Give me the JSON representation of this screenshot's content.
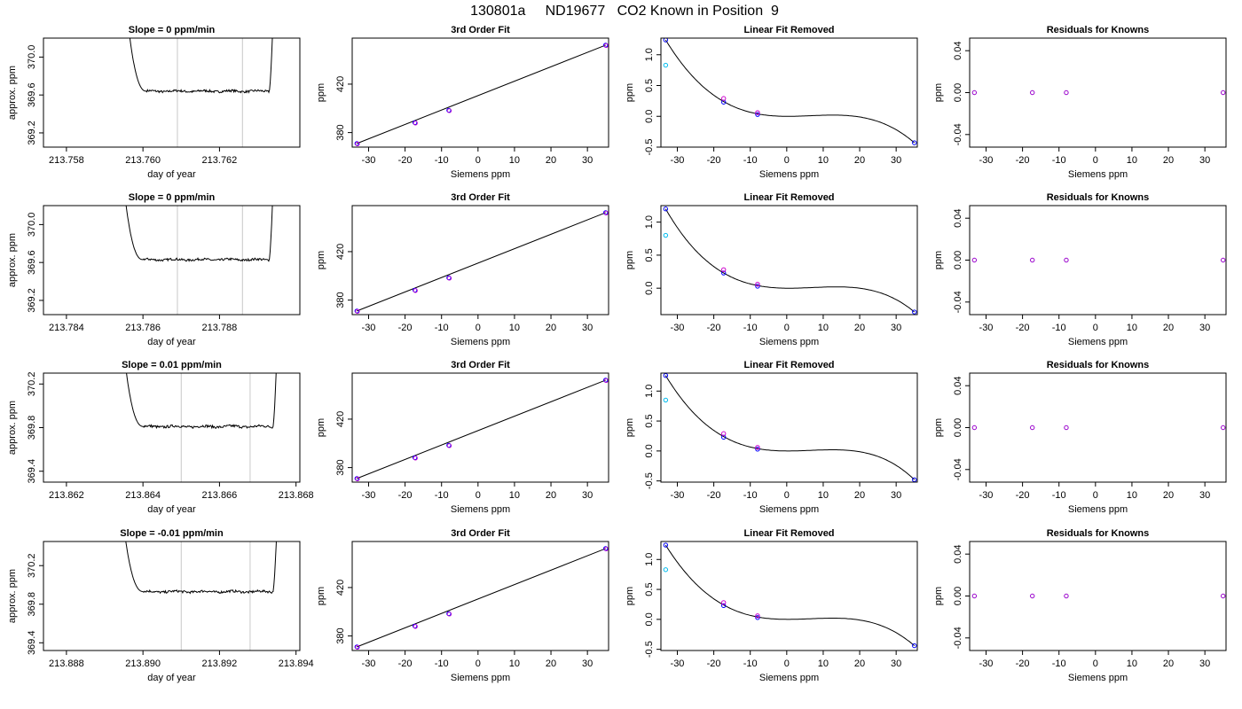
{
  "page": {
    "title": "130801a     ND19677   CO2 Known in Position  9"
  },
  "chart_data": [
    {
      "type": "line",
      "row": 0,
      "panel": "timeseries",
      "title": "Slope =  0  ppm/min",
      "xlabel": "day of year",
      "ylabel": "approx. ppm",
      "xlim": [
        213.7574,
        213.7641
      ],
      "ylim": [
        369.05,
        370.2
      ],
      "xticks": [
        213.758,
        213.76,
        213.762
      ],
      "xtick_labels": [
        "213.758",
        "213.760",
        "213.762"
      ],
      "yticks": [
        369.2,
        369.6,
        370.0
      ],
      "ytick_labels": [
        "369.2",
        "369.6",
        "370.0"
      ],
      "vlines": [
        213.7609,
        213.7626
      ],
      "curve": {
        "start": 213.7593,
        "rise": 213.7596,
        "fall_end": 213.7633,
        "end": 213.7634,
        "level": 369.64,
        "noise": 0.012,
        "top": 370.4
      }
    },
    {
      "type": "line",
      "row": 1,
      "panel": "timeseries",
      "title": "Slope =  0  ppm/min",
      "xlabel": "day of year",
      "ylabel": "approx. ppm",
      "xlim": [
        213.7834,
        213.7901
      ],
      "ylim": [
        369.05,
        370.2
      ],
      "xticks": [
        213.784,
        213.786,
        213.788
      ],
      "xtick_labels": [
        "213.784",
        "213.786",
        "213.788"
      ],
      "yticks": [
        369.2,
        369.6,
        370.0
      ],
      "ytick_labels": [
        "369.2",
        "369.6",
        "370.0"
      ],
      "vlines": [
        213.7869,
        213.7886
      ],
      "curve": {
        "start": 213.7852,
        "rise": 213.7855,
        "fall_end": 213.7893,
        "end": 213.7894,
        "level": 369.63,
        "noise": 0.012,
        "top": 370.4
      }
    },
    {
      "type": "line",
      "row": 2,
      "panel": "timeseries",
      "title": "Slope =  0.01  ppm/min",
      "xlabel": "day of year",
      "ylabel": "approx. ppm",
      "xlim": [
        213.8614,
        213.8681
      ],
      "ylim": [
        369.3,
        370.3
      ],
      "xticks": [
        213.862,
        213.864,
        213.866,
        213.868
      ],
      "xtick_labels": [
        "213.862",
        "213.864",
        "213.866",
        "213.868"
      ],
      "yticks": [
        369.4,
        369.8,
        370.2
      ],
      "ytick_labels": [
        "369.4",
        "369.8",
        "370.2"
      ],
      "vlines": [
        213.865,
        213.8668
      ],
      "curve": {
        "start": 213.8632,
        "rise": 213.8635,
        "fall_end": 213.8674,
        "end": 213.8675,
        "level": 369.81,
        "noise": 0.012,
        "top": 370.5
      }
    },
    {
      "type": "line",
      "row": 3,
      "panel": "timeseries",
      "title": "Slope =  -0.01  ppm/min",
      "xlabel": "day of year",
      "ylabel": "approx. ppm",
      "xlim": [
        213.8874,
        213.8941
      ],
      "ylim": [
        369.32,
        370.45
      ],
      "xticks": [
        213.888,
        213.89,
        213.892,
        213.894
      ],
      "xtick_labels": [
        "213.888",
        "213.890",
        "213.892",
        "213.894"
      ],
      "yticks": [
        369.4,
        369.8,
        370.2
      ],
      "ytick_labels": [
        "369.4",
        "369.8",
        "370.2"
      ],
      "vlines": [
        213.891,
        213.8928
      ],
      "curve": {
        "start": 213.8892,
        "rise": 213.8895,
        "fall_end": 213.8934,
        "end": 213.8935,
        "level": 369.93,
        "noise": 0.012,
        "top": 370.6
      }
    },
    {
      "type": "scatter",
      "row": 0,
      "panel": "fit",
      "title": "3rd Order Fit",
      "xlabel": "Siemens ppm",
      "ylabel": "ppm",
      "xlim": [
        -34.5,
        35.8
      ],
      "ylim": [
        368,
        458
      ],
      "xticks": [
        -30,
        -20,
        -10,
        0,
        10,
        20,
        30
      ],
      "xtick_labels": [
        "-30",
        "-20",
        "-10",
        "0",
        "10",
        "20",
        "30"
      ],
      "yticks": [
        380,
        420
      ],
      "ytick_labels": [
        "380",
        "420"
      ],
      "points": [
        [
          -33.2,
          371.0
        ],
        [
          -17.3,
          388.2
        ],
        [
          -8.0,
          398.4
        ],
        [
          35.0,
          452.2
        ]
      ],
      "line": [
        [
          -33.2,
          371.0
        ],
        [
          35.0,
          452.2
        ]
      ]
    },
    {
      "type": "scatter",
      "row": 1,
      "panel": "fit",
      "title": "3rd Order Fit",
      "xlabel": "Siemens ppm",
      "ylabel": "ppm",
      "xlim": [
        -34.5,
        35.8
      ],
      "ylim": [
        368,
        458
      ],
      "xticks": [
        -30,
        -20,
        -10,
        0,
        10,
        20,
        30
      ],
      "xtick_labels": [
        "-30",
        "-20",
        "-10",
        "0",
        "10",
        "20",
        "30"
      ],
      "yticks": [
        380,
        420
      ],
      "ytick_labels": [
        "380",
        "420"
      ],
      "points": [
        [
          -33.2,
          371.0
        ],
        [
          -17.3,
          388.2
        ],
        [
          -8.0,
          398.4
        ],
        [
          35.0,
          452.2
        ]
      ],
      "line": [
        [
          -33.2,
          371.0
        ],
        [
          35.0,
          452.2
        ]
      ]
    },
    {
      "type": "scatter",
      "row": 2,
      "panel": "fit",
      "title": "3rd Order Fit",
      "xlabel": "Siemens ppm",
      "ylabel": "ppm",
      "xlim": [
        -34.5,
        35.8
      ],
      "ylim": [
        368,
        458
      ],
      "xticks": [
        -30,
        -20,
        -10,
        0,
        10,
        20,
        30
      ],
      "xtick_labels": [
        "-30",
        "-20",
        "-10",
        "0",
        "10",
        "20",
        "30"
      ],
      "yticks": [
        380,
        420
      ],
      "ytick_labels": [
        "380",
        "420"
      ],
      "points": [
        [
          -33.2,
          371.0
        ],
        [
          -17.3,
          388.2
        ],
        [
          -8.0,
          398.4
        ],
        [
          35.0,
          452.2
        ]
      ],
      "line": [
        [
          -33.2,
          371.0
        ],
        [
          35.0,
          452.2
        ]
      ]
    },
    {
      "type": "scatter",
      "row": 3,
      "panel": "fit",
      "title": "3rd Order Fit",
      "xlabel": "Siemens ppm",
      "ylabel": "ppm",
      "xlim": [
        -34.5,
        35.8
      ],
      "ylim": [
        368,
        458
      ],
      "xticks": [
        -30,
        -20,
        -10,
        0,
        10,
        20,
        30
      ],
      "xtick_labels": [
        "-30",
        "-20",
        "-10",
        "0",
        "10",
        "20",
        "30"
      ],
      "yticks": [
        380,
        420
      ],
      "ytick_labels": [
        "380",
        "420"
      ],
      "points": [
        [
          -33.2,
          371.0
        ],
        [
          -17.3,
          388.2
        ],
        [
          -8.0,
          398.4
        ],
        [
          35.0,
          452.2
        ]
      ],
      "line": [
        [
          -33.2,
          371.0
        ],
        [
          35.0,
          452.2
        ]
      ]
    },
    {
      "type": "scatter",
      "row": 0,
      "panel": "linear-removed",
      "title": "Linear Fit Removed",
      "xlabel": "Siemens ppm",
      "ylabel": "ppm",
      "xlim": [
        -34.5,
        35.8
      ],
      "ylim": [
        -0.5,
        1.27
      ],
      "xticks": [
        -30,
        -20,
        -10,
        0,
        10,
        20,
        30
      ],
      "xtick_labels": [
        "-30",
        "-20",
        "-10",
        "0",
        "10",
        "20",
        "30"
      ],
      "yticks": [
        -0.5,
        0.0,
        0.5,
        1.0
      ],
      "ytick_labels": [
        "-0.5",
        "0.0",
        "0.5",
        "1.0"
      ],
      "cubic": {
        "x_from": -33.2,
        "x_to": 35.0,
        "knots": [
          [
            -33.2,
            1.24
          ],
          [
            -17.3,
            0.24
          ],
          [
            -8.0,
            0.04
          ],
          [
            0,
            0.0
          ],
          [
            13,
            0.02
          ],
          [
            35.0,
            -0.43
          ]
        ]
      },
      "series": [
        {
          "name": "blue",
          "color": "#0000ff",
          "points": [
            [
              -33.2,
              1.24
            ],
            [
              -17.3,
              0.23
            ],
            [
              -8.0,
              0.03
            ],
            [
              35.0,
              -0.43
            ]
          ]
        },
        {
          "name": "magenta",
          "color": "#cc00cc",
          "points": [
            [
              -17.3,
              0.29
            ],
            [
              -8.0,
              0.06
            ]
          ]
        },
        {
          "name": "cyan",
          "color": "#00bbee",
          "points": [
            [
              -33.2,
              0.83
            ]
          ]
        }
      ]
    },
    {
      "type": "scatter",
      "row": 1,
      "panel": "linear-removed",
      "title": "Linear Fit Removed",
      "xlabel": "Siemens ppm",
      "ylabel": "ppm",
      "xlim": [
        -34.5,
        35.8
      ],
      "ylim": [
        -0.4,
        1.25
      ],
      "xticks": [
        -30,
        -20,
        -10,
        0,
        10,
        20,
        30
      ],
      "xtick_labels": [
        "-30",
        "-20",
        "-10",
        "0",
        "10",
        "20",
        "30"
      ],
      "yticks": [
        0.0,
        0.5,
        1.0
      ],
      "ytick_labels": [
        "0.0",
        "0.5",
        "1.0"
      ],
      "cubic": {
        "x_from": -33.2,
        "x_to": 35.0,
        "knots": [
          [
            -33.2,
            1.2
          ],
          [
            -17.3,
            0.23
          ],
          [
            -8.0,
            0.04
          ],
          [
            0,
            0.0
          ],
          [
            13,
            0.02
          ],
          [
            35.0,
            -0.36
          ]
        ]
      },
      "series": [
        {
          "name": "blue",
          "color": "#0000ff",
          "points": [
            [
              -33.2,
              1.2
            ],
            [
              -17.3,
              0.23
            ],
            [
              -8.0,
              0.03
            ],
            [
              35.0,
              -0.36
            ]
          ]
        },
        {
          "name": "magenta",
          "color": "#cc00cc",
          "points": [
            [
              -17.3,
              0.28
            ],
            [
              -8.0,
              0.06
            ]
          ]
        },
        {
          "name": "cyan",
          "color": "#00bbee",
          "points": [
            [
              -33.2,
              0.8
            ]
          ]
        }
      ]
    },
    {
      "type": "scatter",
      "row": 2,
      "panel": "linear-removed",
      "title": "Linear Fit Removed",
      "xlabel": "Siemens ppm",
      "ylabel": "ppm",
      "xlim": [
        -34.5,
        35.8
      ],
      "ylim": [
        -0.52,
        1.3
      ],
      "xticks": [
        -30,
        -20,
        -10,
        0,
        10,
        20,
        30
      ],
      "xtick_labels": [
        "-30",
        "-20",
        "-10",
        "0",
        "10",
        "20",
        "30"
      ],
      "yticks": [
        -0.5,
        0.0,
        0.5,
        1.0
      ],
      "ytick_labels": [
        "-0.5",
        "0.0",
        "0.5",
        "1.0"
      ],
      "cubic": {
        "x_from": -33.2,
        "x_to": 35.0,
        "knots": [
          [
            -33.2,
            1.26
          ],
          [
            -17.3,
            0.24
          ],
          [
            -8.0,
            0.04
          ],
          [
            0,
            0.0
          ],
          [
            13,
            0.02
          ],
          [
            35.0,
            -0.48
          ]
        ]
      },
      "series": [
        {
          "name": "blue",
          "color": "#0000ff",
          "points": [
            [
              -33.2,
              1.26
            ],
            [
              -17.3,
              0.23
            ],
            [
              -8.0,
              0.03
            ],
            [
              35.0,
              -0.48
            ]
          ]
        },
        {
          "name": "magenta",
          "color": "#cc00cc",
          "points": [
            [
              -17.3,
              0.29
            ],
            [
              -8.0,
              0.06
            ]
          ]
        },
        {
          "name": "cyan",
          "color": "#00bbee",
          "points": [
            [
              -33.2,
              0.85
            ]
          ]
        }
      ]
    },
    {
      "type": "scatter",
      "row": 3,
      "panel": "linear-removed",
      "title": "Linear Fit Removed",
      "xlabel": "Siemens ppm",
      "ylabel": "ppm",
      "xlim": [
        -34.5,
        35.8
      ],
      "ylim": [
        -0.52,
        1.3
      ],
      "xticks": [
        -30,
        -20,
        -10,
        0,
        10,
        20,
        30
      ],
      "xtick_labels": [
        "-30",
        "-20",
        "-10",
        "0",
        "10",
        "20",
        "30"
      ],
      "yticks": [
        -0.5,
        0.0,
        0.5,
        1.0
      ],
      "ytick_labels": [
        "-0.5",
        "0.0",
        "0.5",
        "1.0"
      ],
      "cubic": {
        "x_from": -33.2,
        "x_to": 35.0,
        "knots": [
          [
            -33.2,
            1.24
          ],
          [
            -17.3,
            0.24
          ],
          [
            -8.0,
            0.04
          ],
          [
            0,
            0.0
          ],
          [
            13,
            0.02
          ],
          [
            35.0,
            -0.44
          ]
        ]
      },
      "series": [
        {
          "name": "blue",
          "color": "#0000ff",
          "points": [
            [
              -33.2,
              1.24
            ],
            [
              -17.3,
              0.23
            ],
            [
              -8.0,
              0.03
            ],
            [
              35.0,
              -0.44
            ]
          ]
        },
        {
          "name": "magenta",
          "color": "#cc00cc",
          "points": [
            [
              -17.3,
              0.28
            ],
            [
              -8.0,
              0.06
            ]
          ]
        },
        {
          "name": "cyan",
          "color": "#00bbee",
          "points": [
            [
              -33.2,
              0.83
            ]
          ]
        }
      ]
    },
    {
      "type": "scatter",
      "row": 0,
      "panel": "residuals",
      "title": "Residuals for Knowns",
      "xlabel": "Siemens ppm",
      "ylabel": "ppm",
      "xlim": [
        -34.5,
        35.8
      ],
      "ylim": [
        -0.052,
        0.052
      ],
      "xticks": [
        -30,
        -20,
        -10,
        0,
        10,
        20,
        30
      ],
      "xtick_labels": [
        "-30",
        "-20",
        "-10",
        "0",
        "10",
        "20",
        "30"
      ],
      "yticks": [
        -0.04,
        0.0,
        0.04
      ],
      "ytick_labels": [
        "-0.04",
        "0.00",
        "0.04"
      ],
      "points": [
        [
          -33.2,
          0.0
        ],
        [
          -17.3,
          0.0
        ],
        [
          -8.0,
          0.0
        ],
        [
          35.0,
          0.0
        ]
      ],
      "color": "#9900cc"
    },
    {
      "type": "scatter",
      "row": 1,
      "panel": "residuals",
      "title": "Residuals for Knowns",
      "xlabel": "Siemens ppm",
      "ylabel": "ppm",
      "xlim": [
        -34.5,
        35.8
      ],
      "ylim": [
        -0.052,
        0.052
      ],
      "xticks": [
        -30,
        -20,
        -10,
        0,
        10,
        20,
        30
      ],
      "xtick_labels": [
        "-30",
        "-20",
        "-10",
        "0",
        "10",
        "20",
        "30"
      ],
      "yticks": [
        -0.04,
        0.0,
        0.04
      ],
      "ytick_labels": [
        "-0.04",
        "0.00",
        "0.04"
      ],
      "points": [
        [
          -33.2,
          0.0
        ],
        [
          -17.3,
          0.0
        ],
        [
          -8.0,
          0.0
        ],
        [
          35.0,
          0.0
        ]
      ],
      "color": "#9900cc"
    },
    {
      "type": "scatter",
      "row": 2,
      "panel": "residuals",
      "title": "Residuals for Knowns",
      "xlabel": "Siemens ppm",
      "ylabel": "ppm",
      "xlim": [
        -34.5,
        35.8
      ],
      "ylim": [
        -0.052,
        0.052
      ],
      "xticks": [
        -30,
        -20,
        -10,
        0,
        10,
        20,
        30
      ],
      "xtick_labels": [
        "-30",
        "-20",
        "-10",
        "0",
        "10",
        "20",
        "30"
      ],
      "yticks": [
        -0.04,
        0.0,
        0.04
      ],
      "ytick_labels": [
        "-0.04",
        "0.00",
        "0.04"
      ],
      "points": [
        [
          -33.2,
          0.0
        ],
        [
          -17.3,
          0.0
        ],
        [
          -8.0,
          0.0
        ],
        [
          35.0,
          0.0
        ]
      ],
      "color": "#9900cc"
    },
    {
      "type": "scatter",
      "row": 3,
      "panel": "residuals",
      "title": "Residuals for Knowns",
      "xlabel": "Siemens ppm",
      "ylabel": "ppm",
      "xlim": [
        -34.5,
        35.8
      ],
      "ylim": [
        -0.052,
        0.052
      ],
      "xticks": [
        -30,
        -20,
        -10,
        0,
        10,
        20,
        30
      ],
      "xtick_labels": [
        "-30",
        "-20",
        "-10",
        "0",
        "10",
        "20",
        "30"
      ],
      "yticks": [
        -0.04,
        0.0,
        0.04
      ],
      "ytick_labels": [
        "-0.04",
        "0.00",
        "0.04"
      ],
      "points": [
        [
          -33.2,
          0.0
        ],
        [
          -17.3,
          0.0
        ],
        [
          -8.0,
          0.0
        ],
        [
          35.0,
          0.0
        ]
      ],
      "color": "#9900cc"
    }
  ]
}
